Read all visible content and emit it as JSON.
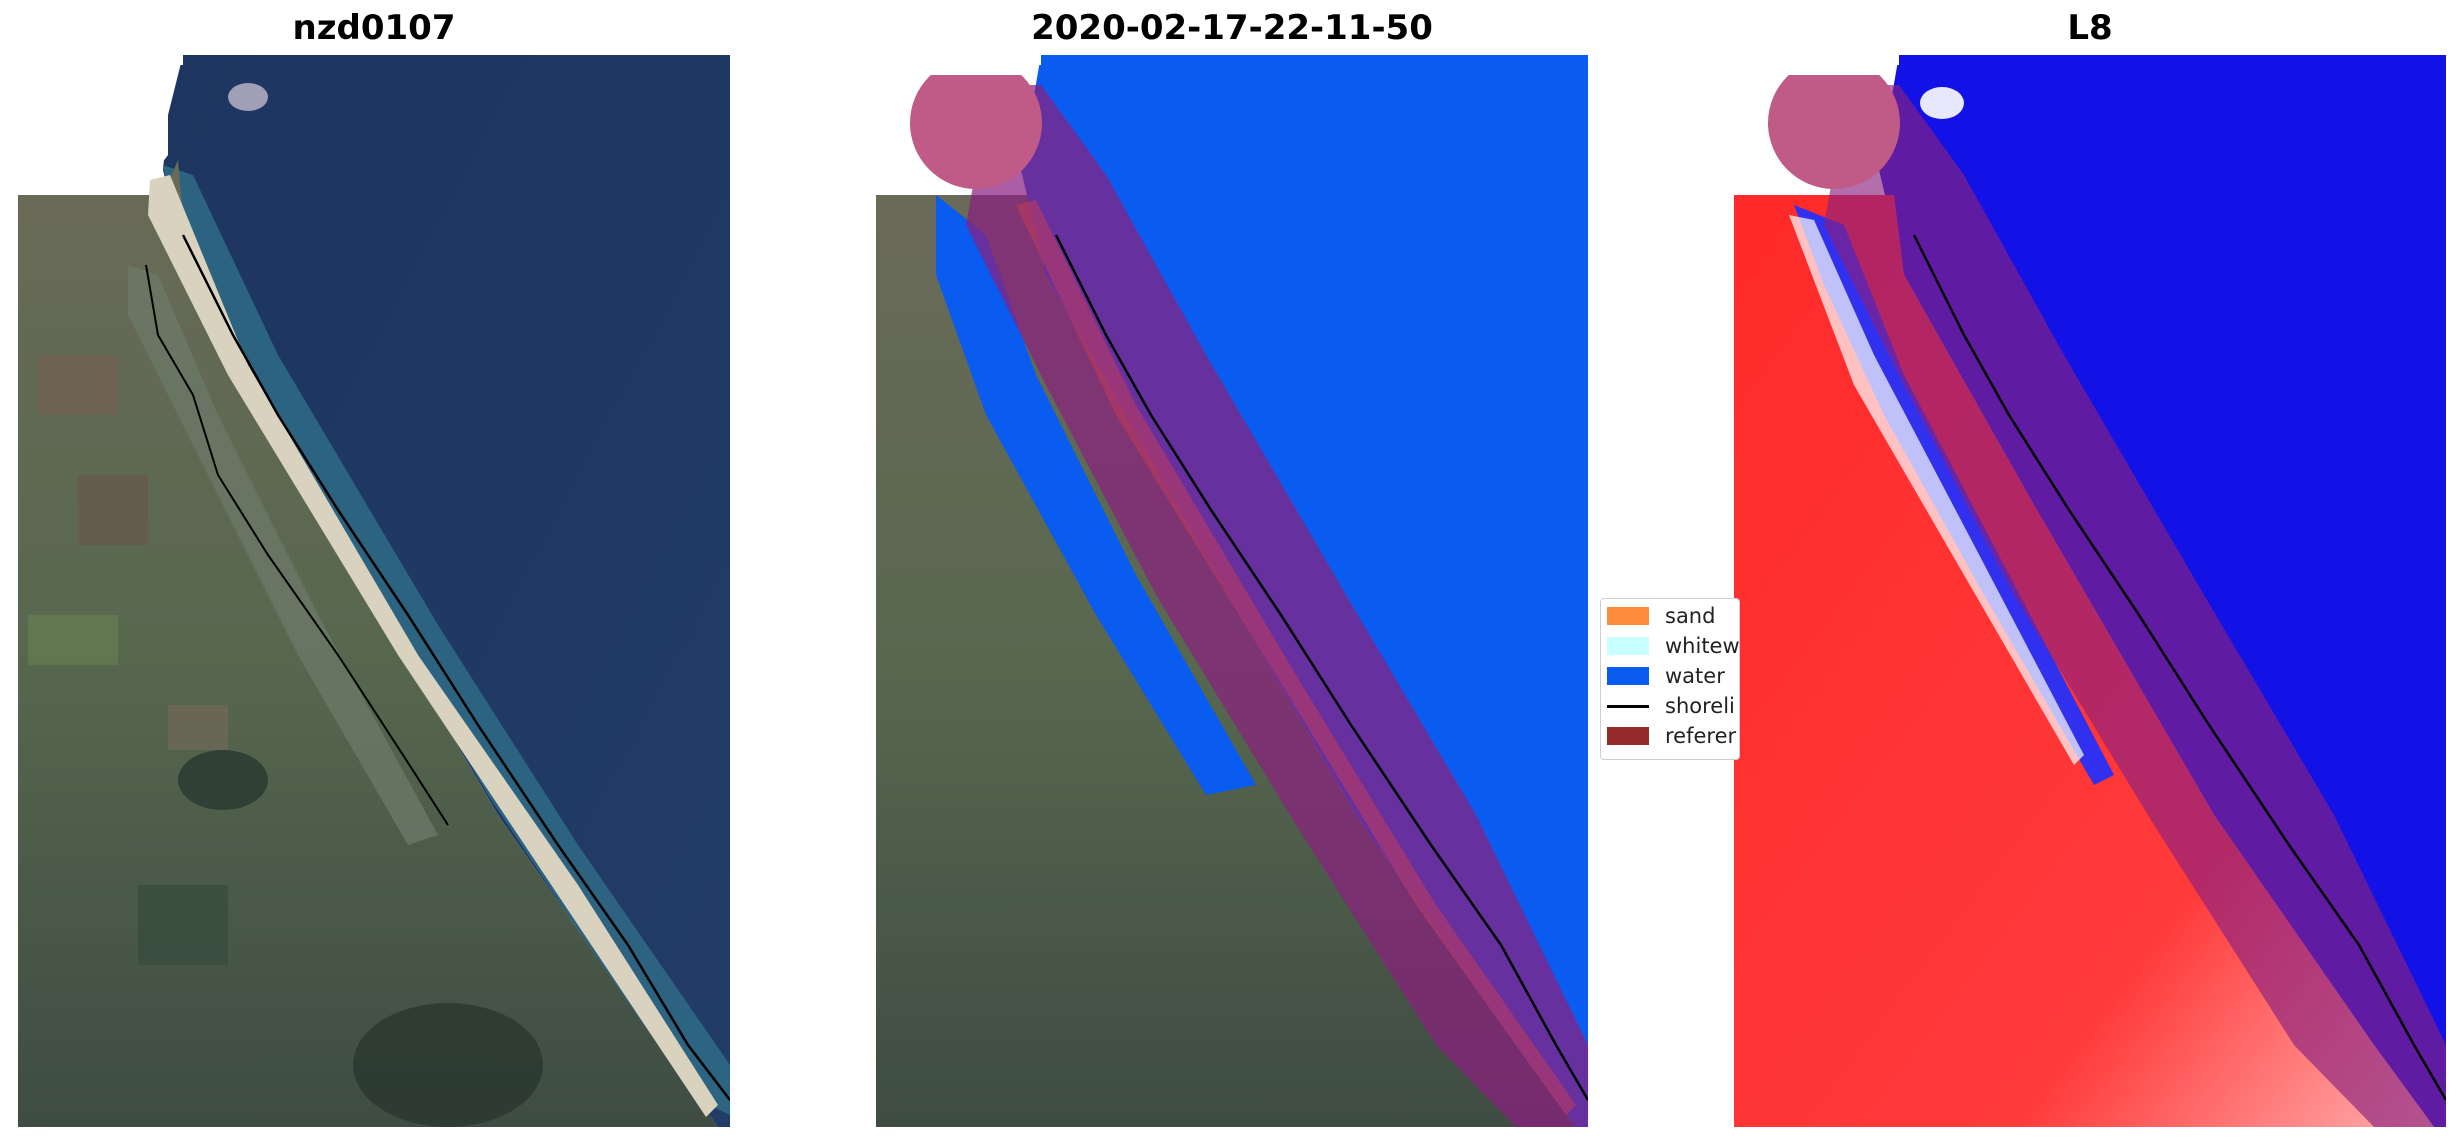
{
  "panels": [
    {
      "title": "nzd0107",
      "kind": "rgb"
    },
    {
      "title": "2020-02-17-22-11-50",
      "kind": "classified"
    },
    {
      "title": "L8",
      "kind": "index"
    }
  ],
  "legend": {
    "items": [
      {
        "label": "sand",
        "color": "#ff8c3a",
        "kind": "patch"
      },
      {
        "label": "whitew",
        "color": "#c8ffff",
        "kind": "patch"
      },
      {
        "label": "water",
        "color": "#0a5cf0",
        "kind": "patch"
      },
      {
        "label": "shoreli",
        "color": "#000000",
        "kind": "line"
      },
      {
        "label": "referer",
        "color": "#952a2a",
        "kind": "patch"
      }
    ]
  },
  "colors": {
    "ocean_rgb": "#1f3760",
    "land_rgb": "#5a6a52",
    "water_class": "#0a5cf0",
    "buffer": "#8a2080",
    "land_index": "#ff2020",
    "water_index": "#1010e8",
    "shoreline": "#000000"
  }
}
